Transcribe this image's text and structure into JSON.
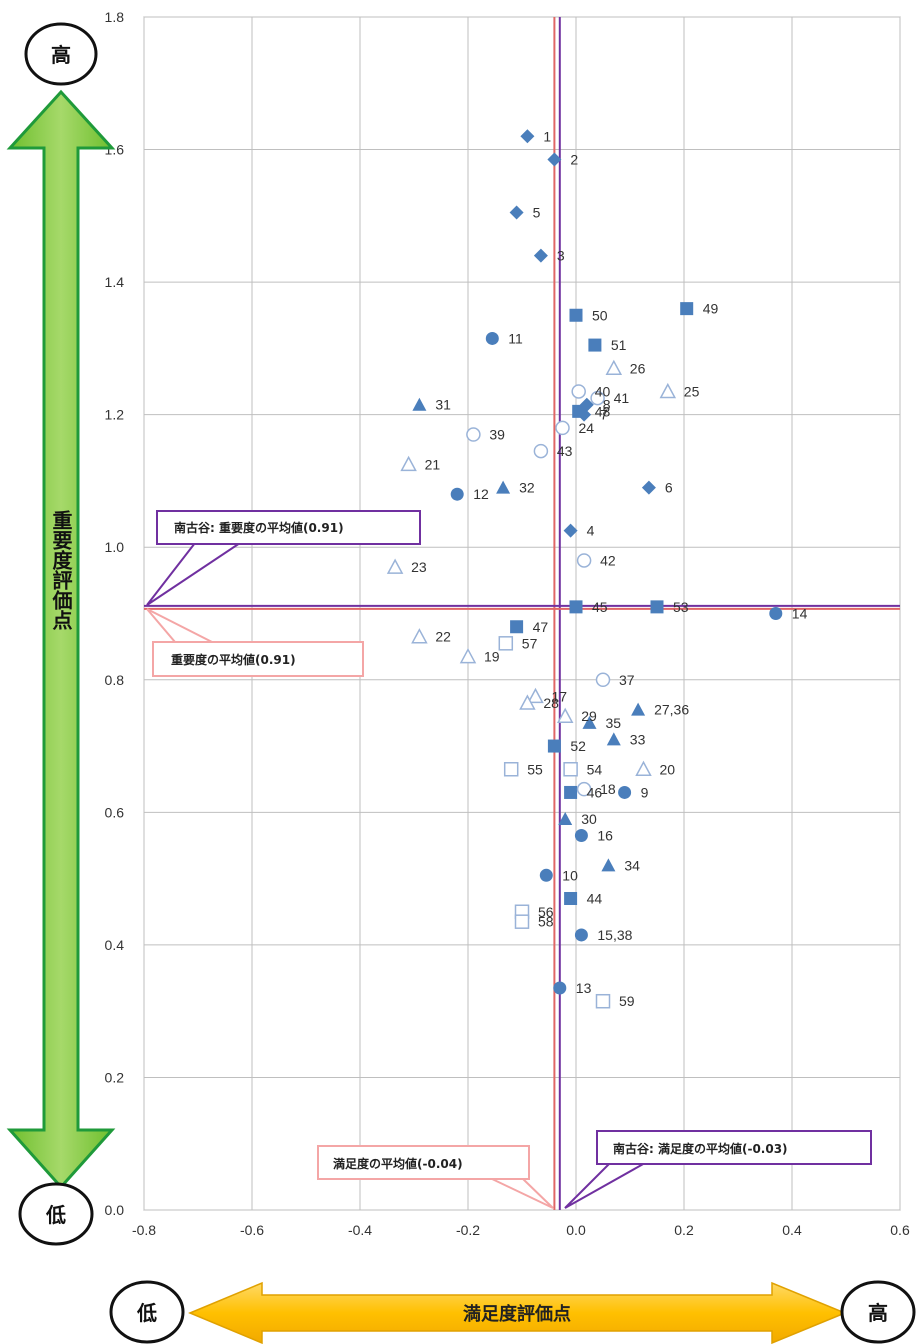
{
  "chart_data": {
    "type": "scatter",
    "xlim": [
      -0.8,
      0.6
    ],
    "ylim": [
      0.0,
      1.8
    ],
    "x_ticks": [
      "-0.8",
      "-0.6",
      "-0.4",
      "-0.2",
      "0.0",
      "0.2",
      "0.4",
      "0.6"
    ],
    "y_ticks": [
      "0.0",
      "0.2",
      "0.4",
      "0.6",
      "0.8",
      "1.0",
      "1.2",
      "1.4",
      "1.6",
      "1.8"
    ],
    "grid": true,
    "xlabel": "満足度評価点",
    "ylabel": "重要度評価点",
    "x_low": "低",
    "x_high": "高",
    "y_low": "低",
    "y_high": "高",
    "ref_lines": {
      "overall_importance_avg": 0.91,
      "overall_satisfaction_avg": -0.04,
      "local_importance_avg": 0.91,
      "local_satisfaction_avg": -0.03
    },
    "callouts": {
      "local_importance": "南古谷: 重要度の平均値(0.91)",
      "overall_importance": "重要度の平均値(0.91)",
      "overall_satisfaction": "満足度の平均値(-0.04)",
      "local_satisfaction": "南古谷: 満足度の平均値(-0.03)"
    },
    "points": [
      {
        "id": "1",
        "x": -0.09,
        "y": 1.62,
        "m": "diamond"
      },
      {
        "id": "2",
        "x": -0.04,
        "y": 1.585,
        "m": "diamond"
      },
      {
        "id": "5",
        "x": -0.11,
        "y": 1.505,
        "m": "diamond"
      },
      {
        "id": "3",
        "x": -0.065,
        "y": 1.44,
        "m": "diamond"
      },
      {
        "id": "4",
        "x": -0.01,
        "y": 1.025,
        "m": "diamond"
      },
      {
        "id": "6",
        "x": 0.135,
        "y": 1.09,
        "m": "diamond"
      },
      {
        "id": "8",
        "x": 0.02,
        "y": 1.215,
        "m": "diamond"
      },
      {
        "id": "7",
        "x": 0.015,
        "y": 1.2,
        "m": "diamond"
      },
      {
        "id": "49",
        "x": 0.205,
        "y": 1.36,
        "m": "square"
      },
      {
        "id": "50",
        "x": 0.0,
        "y": 1.35,
        "m": "square"
      },
      {
        "id": "51",
        "x": 0.035,
        "y": 1.305,
        "m": "square"
      },
      {
        "id": "48",
        "x": 0.005,
        "y": 1.205,
        "m": "square"
      },
      {
        "id": "45",
        "x": 0.0,
        "y": 0.91,
        "m": "square"
      },
      {
        "id": "53",
        "x": 0.15,
        "y": 0.91,
        "m": "square"
      },
      {
        "id": "47",
        "x": -0.11,
        "y": 0.88,
        "m": "square"
      },
      {
        "id": "52",
        "x": -0.04,
        "y": 0.7,
        "m": "square"
      },
      {
        "id": "46",
        "x": -0.01,
        "y": 0.63,
        "m": "square"
      },
      {
        "id": "44",
        "x": -0.01,
        "y": 0.47,
        "m": "square"
      },
      {
        "id": "57",
        "x": -0.13,
        "y": 0.855,
        "m": "square-open"
      },
      {
        "id": "55",
        "x": -0.12,
        "y": 0.665,
        "m": "square-open"
      },
      {
        "id": "54",
        "x": -0.01,
        "y": 0.665,
        "m": "square-open"
      },
      {
        "id": "56",
        "x": -0.1,
        "y": 0.45,
        "m": "square-open"
      },
      {
        "id": "58",
        "x": -0.1,
        "y": 0.435,
        "m": "square-open"
      },
      {
        "id": "59",
        "x": 0.05,
        "y": 0.315,
        "m": "square-open"
      },
      {
        "id": "11",
        "x": -0.155,
        "y": 1.315,
        "m": "circle"
      },
      {
        "id": "12",
        "x": -0.22,
        "y": 1.08,
        "m": "circle"
      },
      {
        "id": "14",
        "x": 0.37,
        "y": 0.9,
        "m": "circle"
      },
      {
        "id": "9",
        "x": 0.09,
        "y": 0.63,
        "m": "circle"
      },
      {
        "id": "16",
        "x": 0.01,
        "y": 0.565,
        "m": "circle"
      },
      {
        "id": "10",
        "x": -0.055,
        "y": 0.505,
        "m": "circle"
      },
      {
        "id": "15,38",
        "x": 0.01,
        "y": 0.415,
        "m": "circle"
      },
      {
        "id": "13",
        "x": -0.03,
        "y": 0.335,
        "m": "circle"
      },
      {
        "id": "40",
        "x": 0.005,
        "y": 1.235,
        "m": "circle-open"
      },
      {
        "id": "41",
        "x": 0.04,
        "y": 1.225,
        "m": "circle-open"
      },
      {
        "id": "39",
        "x": -0.19,
        "y": 1.17,
        "m": "circle-open"
      },
      {
        "id": "43",
        "x": -0.065,
        "y": 1.145,
        "m": "circle-open"
      },
      {
        "id": "24",
        "x": -0.025,
        "y": 1.18,
        "m": "circle-open"
      },
      {
        "id": "42",
        "x": 0.015,
        "y": 0.98,
        "m": "circle-open"
      },
      {
        "id": "37",
        "x": 0.05,
        "y": 0.8,
        "m": "circle-open"
      },
      {
        "id": "18",
        "x": 0.015,
        "y": 0.635,
        "m": "circle-open"
      },
      {
        "id": "31",
        "x": -0.29,
        "y": 1.215,
        "m": "triangle"
      },
      {
        "id": "32",
        "x": -0.135,
        "y": 1.09,
        "m": "triangle"
      },
      {
        "id": "27,36",
        "x": 0.115,
        "y": 0.755,
        "m": "triangle"
      },
      {
        "id": "35",
        "x": 0.025,
        "y": 0.735,
        "m": "triangle"
      },
      {
        "id": "33",
        "x": 0.07,
        "y": 0.71,
        "m": "triangle"
      },
      {
        "id": "30",
        "x": -0.02,
        "y": 0.59,
        "m": "triangle"
      },
      {
        "id": "34",
        "x": 0.06,
        "y": 0.52,
        "m": "triangle"
      },
      {
        "id": "26",
        "x": 0.07,
        "y": 1.27,
        "m": "triangle-open"
      },
      {
        "id": "25",
        "x": 0.17,
        "y": 1.235,
        "m": "triangle-open"
      },
      {
        "id": "21",
        "x": -0.31,
        "y": 1.125,
        "m": "triangle-open"
      },
      {
        "id": "23",
        "x": -0.335,
        "y": 0.97,
        "m": "triangle-open"
      },
      {
        "id": "22",
        "x": -0.29,
        "y": 0.865,
        "m": "triangle-open"
      },
      {
        "id": "19",
        "x": -0.2,
        "y": 0.835,
        "m": "triangle-open"
      },
      {
        "id": "17",
        "x": -0.075,
        "y": 0.775,
        "m": "triangle-open"
      },
      {
        "id": "28",
        "x": -0.09,
        "y": 0.765,
        "m": "triangle-open"
      },
      {
        "id": "29",
        "x": -0.02,
        "y": 0.745,
        "m": "triangle-open"
      },
      {
        "id": "20",
        "x": 0.125,
        "y": 0.665,
        "m": "triangle-open"
      }
    ]
  }
}
